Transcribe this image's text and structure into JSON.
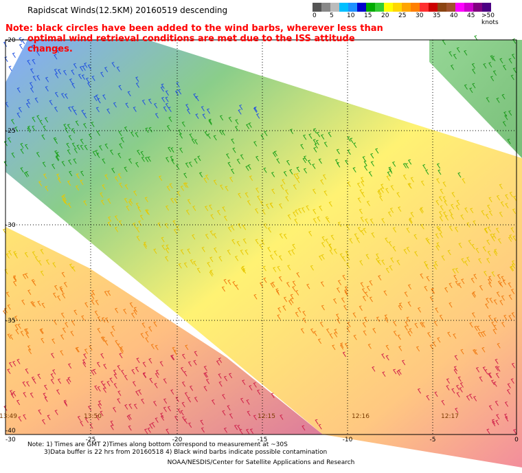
{
  "title": "Rapidscat Winds(12.5KM) 20160519 descending",
  "note": {
    "line1": "Note: black circles have been added to the wind barbs, wherever less than",
    "line2": "optimal wind retrieval conditions are met due to the ISS attitude changes."
  },
  "legend": {
    "colors": [
      "#555555",
      "#888888",
      "#bbbbbb",
      "#00bfff",
      "#1e90ff",
      "#0000cd",
      "#00aa00",
      "#33cc33",
      "#ffff00",
      "#ffd700",
      "#ffa500",
      "#ff7f00",
      "#ff3030",
      "#cc0000",
      "#8b4513",
      "#a0522d",
      "#ff00ff",
      "#cc00cc",
      "#800080",
      "#4b0082"
    ],
    "labels": [
      "0",
      "5",
      "10",
      "15",
      "20",
      "25",
      "30",
      "35",
      "40",
      "45",
      ">50 knots"
    ]
  },
  "map": {
    "lat_labels": [
      "-20",
      "-25",
      "-30",
      "-35",
      "-40"
    ],
    "lon_labels": [
      "-25",
      "-20",
      "-15",
      "-10",
      "-5",
      "0"
    ],
    "corner_label": "-30",
    "time_labels": [
      "13:49",
      "13:50",
      "12:15",
      "12:16",
      "12:17"
    ]
  },
  "footer": {
    "line1": "Note: 1) Times are GMT 2)Times along bottom correspond to measurement at ~30S",
    "line2": "3)Data buffer is 22 hrs from 20160518 4) Black wind barbs indicate possible contamination",
    "line3": "NOAA/NESDIS/Center for Satellite Applications and Research"
  }
}
